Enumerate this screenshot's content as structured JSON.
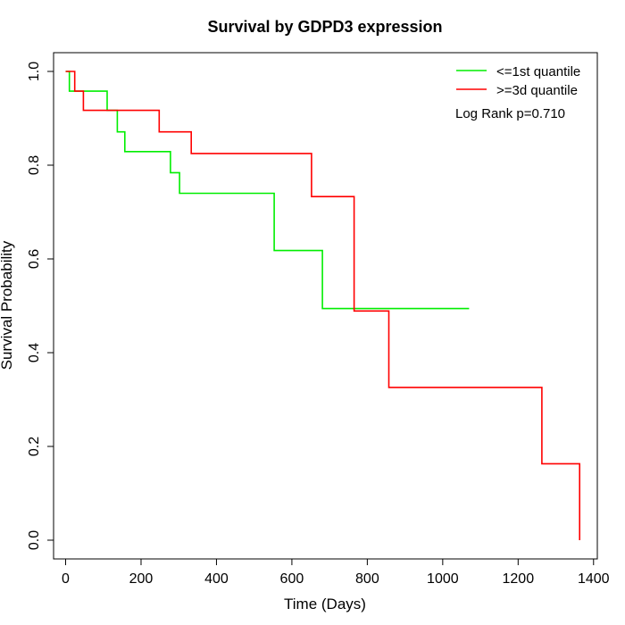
{
  "chart_data": {
    "type": "line",
    "title": "Survival by GDPD3 expression",
    "xlabel": "Time (Days)",
    "ylabel": "Survival Probability",
    "xlim": [
      -32,
      1410
    ],
    "ylim": [
      -0.04,
      1.04
    ],
    "xticks": [
      0,
      200,
      400,
      600,
      800,
      1000,
      1200,
      1400
    ],
    "yticks": [
      0.0,
      0.2,
      0.4,
      0.6,
      0.8,
      1.0
    ],
    "xtick_labels": [
      "0",
      "200",
      "400",
      "600",
      "800",
      "1000",
      "1200",
      "1400"
    ],
    "ytick_labels": [
      "0.0",
      "0.2",
      "0.4",
      "0.6",
      "0.8",
      "1.0"
    ],
    "annotation": "Log Rank p=0.710",
    "legend_position": "top-right",
    "grid": false,
    "series": [
      {
        "name": "<=1st quantile",
        "color": "#00ee00",
        "step_points": [
          [
            0,
            1.0
          ],
          [
            10,
            1.0
          ],
          [
            10,
            0.958
          ],
          [
            110,
            0.958
          ],
          [
            110,
            0.917
          ],
          [
            137,
            0.917
          ],
          [
            137,
            0.871
          ],
          [
            157,
            0.871
          ],
          [
            157,
            0.829
          ],
          [
            278,
            0.829
          ],
          [
            278,
            0.784
          ],
          [
            302,
            0.784
          ],
          [
            302,
            0.74
          ],
          [
            553,
            0.74
          ],
          [
            553,
            0.618
          ],
          [
            681,
            0.618
          ],
          [
            681,
            0.494
          ],
          [
            1070,
            0.494
          ]
        ]
      },
      {
        "name": ">=3d quantile",
        "color": "#ff0000",
        "step_points": [
          [
            0,
            1.0
          ],
          [
            24,
            1.0
          ],
          [
            24,
            0.958
          ],
          [
            47,
            0.958
          ],
          [
            47,
            0.917
          ],
          [
            248,
            0.917
          ],
          [
            248,
            0.871
          ],
          [
            333,
            0.871
          ],
          [
            333,
            0.825
          ],
          [
            652,
            0.825
          ],
          [
            652,
            0.733
          ],
          [
            765,
            0.733
          ],
          [
            765,
            0.611
          ],
          [
            765,
            0.489
          ],
          [
            857,
            0.489
          ],
          [
            857,
            0.326
          ],
          [
            1263,
            0.326
          ],
          [
            1263,
            0.163
          ],
          [
            1363,
            0.163
          ],
          [
            1363,
            0.0
          ]
        ]
      }
    ]
  }
}
